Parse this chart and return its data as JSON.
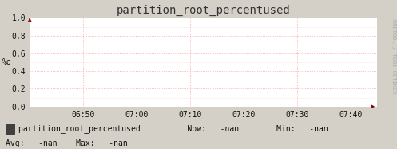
{
  "title": "partition_root_percentused",
  "ylabel": "%o",
  "ylim": [
    0.0,
    1.0
  ],
  "yticks": [
    0.0,
    0.2,
    0.4,
    0.6,
    0.8,
    1.0
  ],
  "xtick_labels": [
    "06:50",
    "07:00",
    "07:10",
    "07:20",
    "07:30",
    "07:40"
  ],
  "xtick_pos": [
    10,
    20,
    30,
    40,
    50,
    60
  ],
  "xlim": [
    0,
    65
  ],
  "bg_color": "#d4d0c8",
  "plot_bg_color": "#ffffff",
  "grid_color": "#f08080",
  "grid_alpha": 0.7,
  "axis_arrow_color": "#880000",
  "title_color": "#333333",
  "legend_box_color": "#404040",
  "legend_text": "partition_root_percentused",
  "now_label": "Now:",
  "now_val": "-nan",
  "min_label": "Min:",
  "min_val": "-nan",
  "avg_label": "Avg:",
  "avg_val": "-nan",
  "max_label": "Max:",
  "max_val": "-nan",
  "watermark": "RRDTOOL / TOBI OETIKER",
  "font_color": "#111111",
  "title_fontsize": 10,
  "tick_fontsize": 7,
  "legend_fontsize": 7,
  "watermark_color": "#aaaaaa",
  "watermark_fontsize": 5
}
